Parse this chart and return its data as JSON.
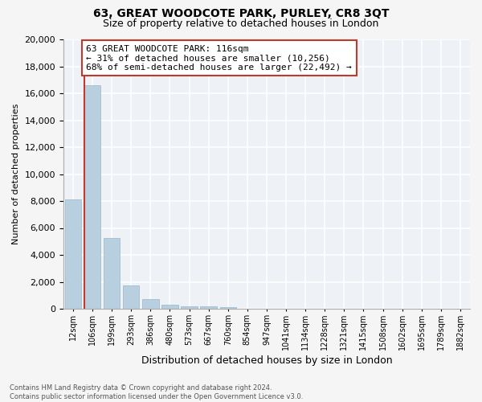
{
  "title": "63, GREAT WOODCOTE PARK, PURLEY, CR8 3QT",
  "subtitle": "Size of property relative to detached houses in London",
  "xlabel": "Distribution of detached houses by size in London",
  "ylabel": "Number of detached properties",
  "annotation_line1": "63 GREAT WOODCOTE PARK: 116sqm",
  "annotation_line2": "← 31% of detached houses are smaller (10,256)",
  "annotation_line3": "68% of semi-detached houses are larger (22,492) →",
  "property_bin_index": 1,
  "categories": [
    "12sqm",
    "106sqm",
    "199sqm",
    "293sqm",
    "386sqm",
    "480sqm",
    "573sqm",
    "667sqm",
    "760sqm",
    "854sqm",
    "947sqm",
    "1041sqm",
    "1134sqm",
    "1228sqm",
    "1321sqm",
    "1415sqm",
    "1508sqm",
    "1602sqm",
    "1695sqm",
    "1789sqm",
    "1882sqm"
  ],
  "values": [
    8100,
    16600,
    5250,
    1750,
    700,
    300,
    200,
    150,
    120,
    0,
    0,
    0,
    0,
    0,
    0,
    0,
    0,
    0,
    0,
    0,
    0
  ],
  "bar_color": "#b8cfe0",
  "bar_edge_color": "#9ab5ca",
  "property_line_color": "#c0392b",
  "annotation_box_edge_color": "#c0392b",
  "annotation_bg_color": "#ffffff",
  "plot_bg_color": "#eef2f7",
  "grid_color": "#ffffff",
  "ylim": [
    0,
    20000
  ],
  "yticks": [
    0,
    2000,
    4000,
    6000,
    8000,
    10000,
    12000,
    14000,
    16000,
    18000,
    20000
  ],
  "footer_line1": "Contains HM Land Registry data © Crown copyright and database right 2024.",
  "footer_line2": "Contains public sector information licensed under the Open Government Licence v3.0.",
  "title_fontsize": 10,
  "subtitle_fontsize": 9,
  "ylabel_fontsize": 8,
  "xlabel_fontsize": 9,
  "tick_fontsize": 8,
  "xtick_fontsize": 7,
  "footer_fontsize": 6,
  "annotation_fontsize": 8
}
